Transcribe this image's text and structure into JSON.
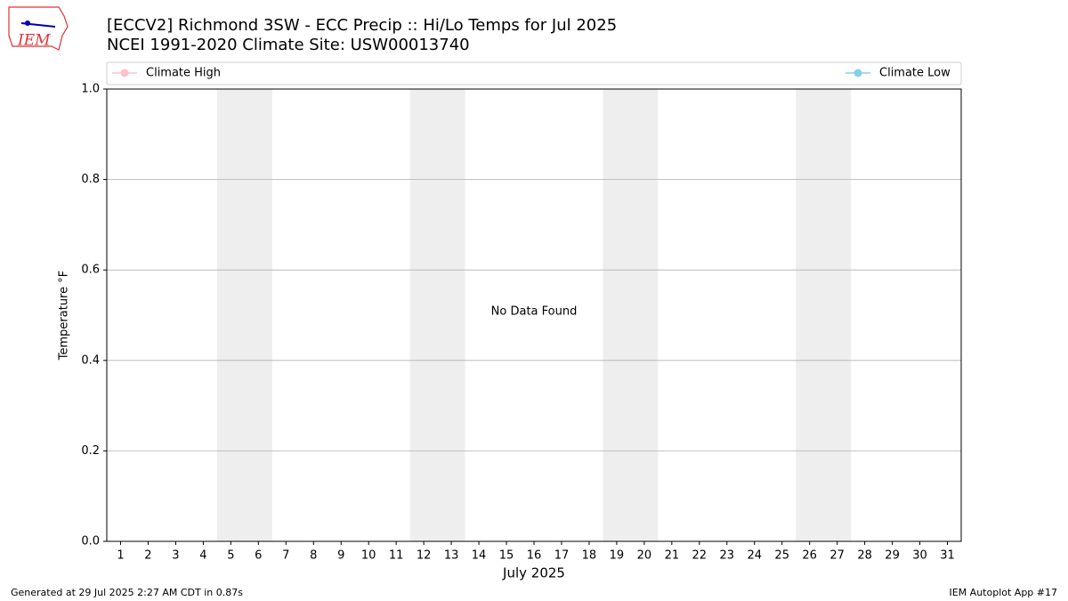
{
  "chart_data": {
    "type": "line",
    "title": "[ECCV2] Richmond 3SW - ECC Precip :: Hi/Lo Temps for Jul 2025",
    "subtitle": "NCEI 1991-2020 Climate Site: USW00013740",
    "x": [
      1,
      2,
      3,
      4,
      5,
      6,
      7,
      8,
      9,
      10,
      11,
      12,
      13,
      14,
      15,
      16,
      17,
      18,
      19,
      20,
      21,
      22,
      23,
      24,
      25,
      26,
      27,
      28,
      29,
      30,
      31
    ],
    "series": [
      {
        "name": "Climate High",
        "color": "pink",
        "values": [
          null,
          null,
          null,
          null,
          null,
          null,
          null,
          null,
          null,
          null,
          null,
          null,
          null,
          null,
          null,
          null,
          null,
          null,
          null,
          null,
          null,
          null,
          null,
          null,
          null,
          null,
          null,
          null,
          null,
          null,
          null
        ]
      },
      {
        "name": "Climate Low",
        "color": "skyblue",
        "values": [
          null,
          null,
          null,
          null,
          null,
          null,
          null,
          null,
          null,
          null,
          null,
          null,
          null,
          null,
          null,
          null,
          null,
          null,
          null,
          null,
          null,
          null,
          null,
          null,
          null,
          null,
          null,
          null,
          null,
          null,
          null
        ]
      }
    ],
    "xlim": [
      0.5,
      31.5
    ],
    "xticks": [
      1,
      2,
      3,
      4,
      5,
      6,
      7,
      8,
      9,
      10,
      11,
      12,
      13,
      14,
      15,
      16,
      17,
      18,
      19,
      20,
      21,
      22,
      23,
      24,
      25,
      26,
      27,
      28,
      29,
      30,
      31
    ],
    "ylim": [
      0,
      1
    ],
    "yticks": [
      {
        "value": 0,
        "label": "0.0"
      },
      {
        "value": 0.2,
        "label": "0.2"
      },
      {
        "value": 0.4,
        "label": "0.4"
      },
      {
        "value": 0.6,
        "label": "0.6"
      },
      {
        "value": 0.8,
        "label": "0.8"
      },
      {
        "value": 1,
        "label": "1.0"
      }
    ],
    "xlabel": "July 2025",
    "ylabel": "Temperature °F",
    "grid": true,
    "legend": "top",
    "shaded_spans": [
      [
        4.5,
        6.5
      ],
      [
        11.5,
        13.5
      ],
      [
        18.5,
        20.5
      ],
      [
        25.5,
        27.5
      ]
    ],
    "shade_color": "#eeeeee",
    "annotation": "No Data Found"
  },
  "logo": "IEM",
  "footer": {
    "left": "Generated at 29 Jul 2025 2:27 AM CDT in 0.87s",
    "right": "IEM Autoplot App #17"
  }
}
